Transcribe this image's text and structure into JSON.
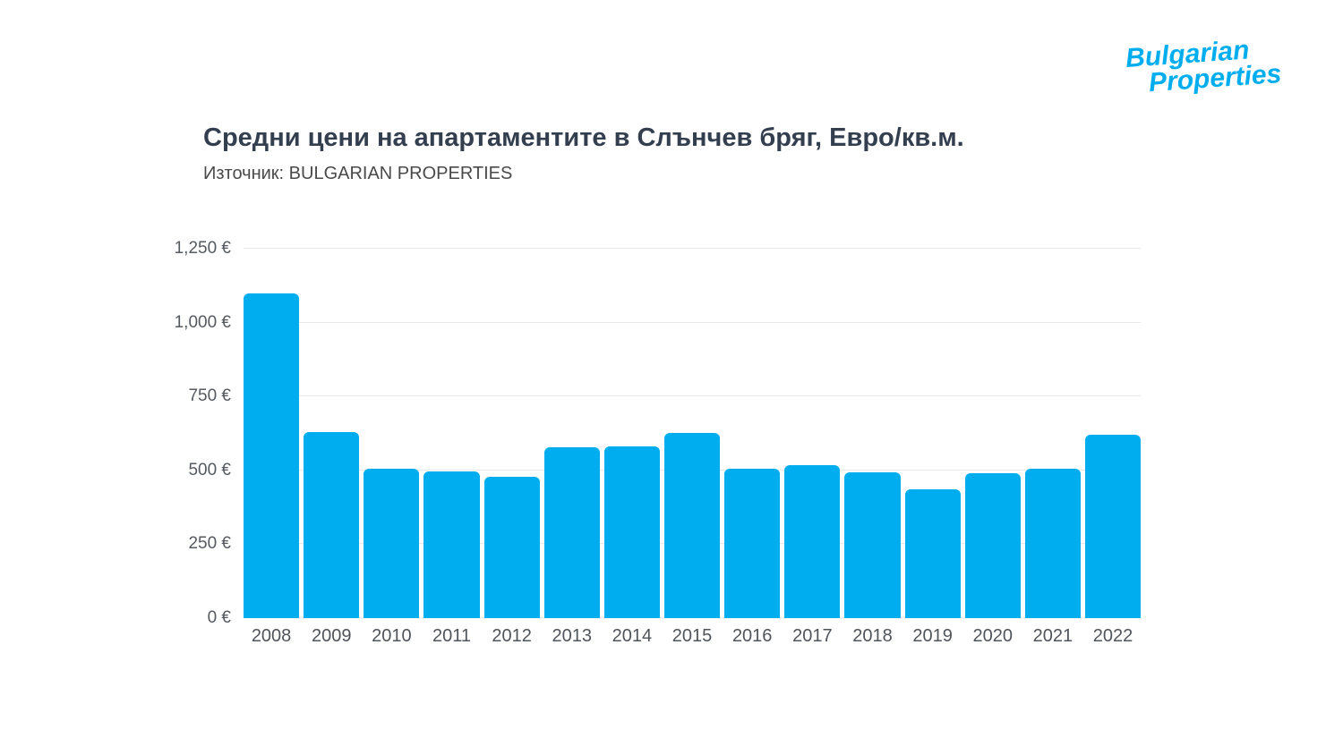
{
  "logo": {
    "line1": "Bulgarian",
    "line2": "Properties",
    "color": "#00aeef"
  },
  "header": {
    "title": "Средни цени на апартаментите в Слънчев бряг, Евро/кв.м.",
    "source": "Източник: BULGARIAN PROPERTIES"
  },
  "chart_data": {
    "type": "bar",
    "title": "Средни цени на апартаментите в Слънчев бряг, Евро/кв.м.",
    "subtitle": "Източник: BULGARIAN PROPERTIES",
    "categories": [
      "2008",
      "2009",
      "2010",
      "2011",
      "2012",
      "2013",
      "2014",
      "2015",
      "2016",
      "2017",
      "2018",
      "2019",
      "2020",
      "2021",
      "2022"
    ],
    "values": [
      1100,
      630,
      507,
      495,
      477,
      578,
      580,
      627,
      505,
      519,
      492,
      437,
      490,
      507,
      620
    ],
    "xlabel": "",
    "ylabel": "",
    "ylim": [
      0,
      1250
    ],
    "yticks": [
      0,
      250,
      500,
      750,
      1000,
      1250
    ],
    "ytick_labels": [
      "0 €",
      "250 €",
      "500 €",
      "750 €",
      "1,000 €",
      "1,250 €"
    ],
    "bar_color": "#00aeef",
    "grid": true,
    "legend": "none",
    "currency": "EUR"
  }
}
